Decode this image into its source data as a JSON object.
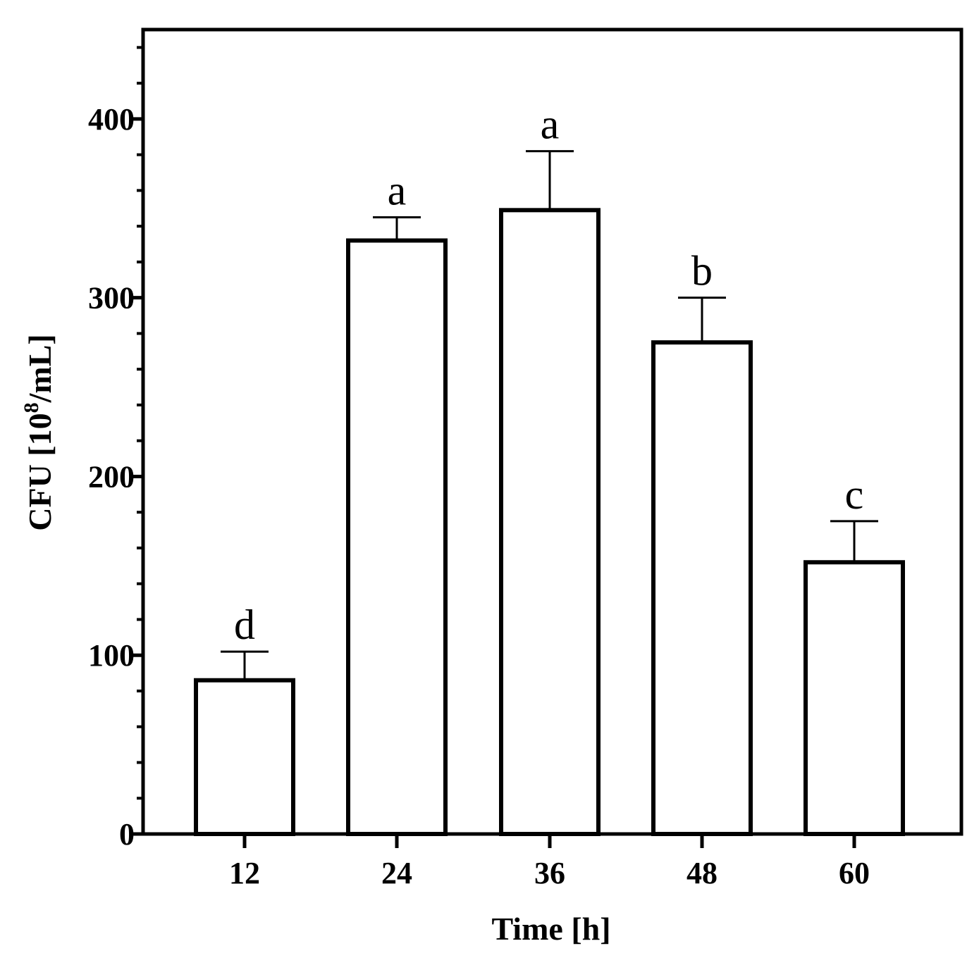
{
  "chart_data": {
    "type": "bar",
    "categories": [
      "12",
      "24",
      "36",
      "48",
      "60"
    ],
    "values": [
      86,
      332,
      349,
      275,
      152
    ],
    "errors": [
      16,
      13,
      33,
      25,
      23
    ],
    "significance_labels": [
      "d",
      "a",
      "a",
      "b",
      "c"
    ],
    "xlabel": "Time [h]",
    "ylabel": {
      "prefix": "CFU [10",
      "superscript": "8",
      "suffix": "/mL]"
    },
    "yticks": [
      "0",
      "100",
      "200",
      "300",
      "400"
    ],
    "ylim": [
      0,
      450
    ],
    "grid": false,
    "legend": "none",
    "colors": {
      "bar_fill": "#ffffff",
      "bar_stroke": "#000000",
      "axis": "#000000"
    }
  }
}
